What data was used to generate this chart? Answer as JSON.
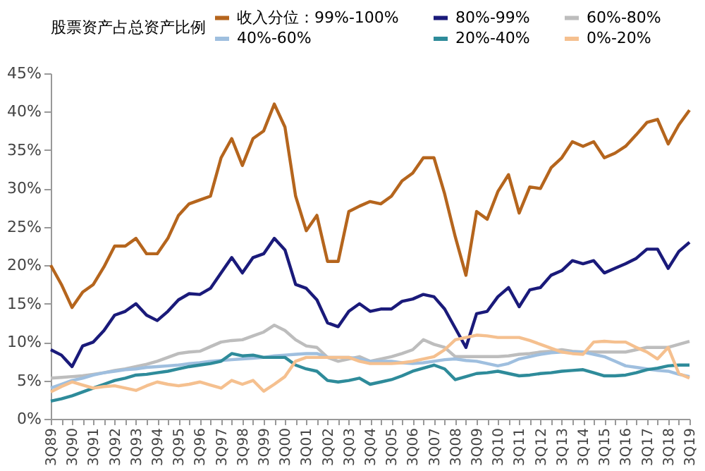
{
  "chart_data": {
    "type": "line",
    "legend_title": "股票资产占总资产比例",
    "legend": "top",
    "grid": false,
    "marker": "none",
    "line_style": "solid",
    "categories": [
      "3Q89",
      null,
      "3Q90",
      null,
      "3Q91",
      null,
      "3Q92",
      null,
      "3Q93",
      null,
      "3Q94",
      null,
      "3Q95",
      null,
      "3Q96",
      null,
      "3Q97",
      null,
      "3Q98",
      null,
      "3Q99",
      null,
      "3Q00",
      null,
      "3Q01",
      null,
      "3Q02",
      null,
      "3Q03",
      null,
      "3Q04",
      null,
      "3Q05",
      null,
      "3Q06",
      null,
      "3Q07",
      null,
      "3Q08",
      null,
      "3Q09",
      null,
      "3Q10",
      null,
      "3Q11",
      null,
      "3Q12",
      null,
      "3Q13",
      null,
      "3Q14",
      null,
      "3Q15",
      null,
      "3Q16",
      null,
      "3Q17",
      null,
      "3Q18",
      null,
      "3Q19"
    ],
    "ylim": [
      0,
      45
    ],
    "yticks": [
      {
        "value": 0,
        "label": "0%"
      },
      {
        "value": 5,
        "label": "5%"
      },
      {
        "value": 10,
        "label": "10%"
      },
      {
        "value": 15,
        "label": "15%"
      },
      {
        "value": 20,
        "label": "20%"
      },
      {
        "value": 25,
        "label": "25%"
      },
      {
        "value": 30,
        "label": "30%"
      },
      {
        "value": 35,
        "label": "35%"
      },
      {
        "value": 40,
        "label": "40%"
      },
      {
        "value": 45,
        "label": "45%"
      }
    ],
    "series": [
      {
        "name": "收入分位：99%-100%",
        "color": "#b5651d",
        "values": [
          20,
          17.5,
          14.5,
          16.5,
          17.5,
          19.8,
          22.5,
          22.5,
          23.5,
          21.5,
          21.5,
          23.5,
          26.5,
          28,
          28.5,
          29,
          34,
          36.5,
          33,
          36.5,
          37.5,
          41,
          38,
          29,
          24.5,
          26.5,
          20.5,
          20.5,
          27,
          27.7,
          28.3,
          28,
          29,
          31,
          32,
          34,
          34,
          29.3,
          23.7,
          18.7,
          27,
          26,
          29.6,
          31.8,
          26.8,
          30.2,
          30,
          32.7,
          34,
          36.1,
          35.5,
          36.1,
          34,
          34.6,
          35.5,
          37,
          38.6,
          39,
          35.8,
          38.3,
          40.2
        ]
      },
      {
        "name": "80%-99%",
        "color": "#1a1a7a",
        "values": [
          9,
          8.3,
          6.8,
          9.5,
          10,
          11.5,
          13.5,
          14,
          15,
          13.5,
          12.8,
          14,
          15.5,
          16.3,
          16.2,
          17,
          19,
          21,
          19,
          21,
          21.5,
          23.5,
          22,
          17.5,
          17,
          15.5,
          12.5,
          12,
          14,
          15,
          14,
          14.3,
          14.3,
          15.3,
          15.6,
          16.2,
          15.9,
          14.3,
          11.8,
          9.3,
          13.7,
          14,
          15.9,
          17.1,
          14.6,
          16.8,
          17.1,
          18.7,
          19.3,
          20.6,
          20.2,
          20.6,
          19,
          19.6,
          20.2,
          20.9,
          22.1,
          22.1,
          19.6,
          21.8,
          23
        ]
      },
      {
        "name": "60%-80%",
        "color": "#bdbdbd",
        "values": [
          5.3,
          5.4,
          5.5,
          5.6,
          5.8,
          6.0,
          6.3,
          6.5,
          6.8,
          7.1,
          7.5,
          8,
          8.5,
          8.7,
          8.8,
          9.4,
          10,
          10.2,
          10.3,
          10.8,
          11.3,
          12.2,
          11.5,
          10.3,
          9.5,
          9.3,
          8,
          7.5,
          7.8,
          8.1,
          7.5,
          7.8,
          8.1,
          8.5,
          9,
          10.3,
          9.7,
          9.3,
          8.1,
          8.1,
          8.1,
          8.1,
          8.1,
          8.2,
          8.4,
          8.5,
          8.7,
          8.8,
          9,
          8.8,
          8.7,
          8.7,
          8.7,
          8.7,
          8.7,
          9,
          9.3,
          9.3,
          9.3,
          9.7,
          10.1
        ]
      },
      {
        "name": "40%-60%",
        "color": "#9fbfdf",
        "values": [
          4,
          4.5,
          5,
          5.3,
          5.7,
          6.0,
          6.2,
          6.4,
          6.5,
          6.7,
          6.8,
          6.9,
          7,
          7.2,
          7.3,
          7.5,
          7.6,
          7.7,
          7.8,
          7.9,
          8,
          8.2,
          8.3,
          8.4,
          8.5,
          8.5,
          8,
          8,
          8,
          7.8,
          7.5,
          7.5,
          7.5,
          7.3,
          7.2,
          7.3,
          7.5,
          7.7,
          7.8,
          7.6,
          7.5,
          7.2,
          6.9,
          7.2,
          7.8,
          8.1,
          8.4,
          8.6,
          8.7,
          8.7,
          8.7,
          8.4,
          8.1,
          7.5,
          6.9,
          6.7,
          6.5,
          6.3,
          6.2,
          5.8,
          5.5
        ]
      },
      {
        "name": "20%-40%",
        "color": "#2e8b9a",
        "values": [
          2.3,
          2.6,
          3,
          3.5,
          4,
          4.5,
          5,
          5.3,
          5.7,
          5.8,
          6,
          6.2,
          6.5,
          6.8,
          7,
          7.2,
          7.5,
          8.5,
          8.2,
          8.3,
          8,
          8,
          8,
          7,
          6.5,
          6.2,
          5,
          4.8,
          5,
          5.3,
          4.5,
          4.8,
          5.1,
          5.6,
          6.2,
          6.6,
          7,
          6.5,
          5.1,
          5.5,
          5.9,
          6,
          6.2,
          5.9,
          5.6,
          5.7,
          5.9,
          6,
          6.2,
          6.3,
          6.4,
          6,
          5.6,
          5.6,
          5.7,
          6,
          6.4,
          6.6,
          6.9,
          7,
          7
        ]
      },
      {
        "name": "0%-20%",
        "color": "#f5c08f",
        "values": [
          3.5,
          4.2,
          4.8,
          4.4,
          4,
          4.2,
          4.3,
          4,
          3.7,
          4.3,
          4.8,
          4.5,
          4.3,
          4.5,
          4.8,
          4.4,
          4,
          5,
          4.5,
          5,
          3.6,
          4.5,
          5.5,
          7.5,
          8,
          8,
          8,
          8,
          8,
          7.5,
          7.2,
          7.2,
          7.2,
          7.3,
          7.5,
          7.8,
          8.1,
          9,
          10.3,
          10.6,
          10.9,
          10.8,
          10.6,
          10.6,
          10.6,
          10.2,
          9.7,
          9.2,
          8.7,
          8.5,
          8.4,
          10,
          10.1,
          10,
          10,
          9.3,
          8.7,
          7.8,
          9.3,
          5.9,
          5.3
        ]
      }
    ]
  }
}
